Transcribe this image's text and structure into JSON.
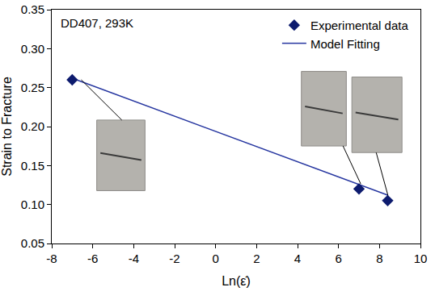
{
  "chart_data": {
    "type": "scatter",
    "annotations": [
      "DD407, 293K"
    ],
    "x_label": "Ln(ε̇)",
    "y_label": "Strain to Fracture",
    "series": [
      {
        "name": "Experimental data",
        "type": "scatter",
        "marker": "diamond",
        "color": "#0d1b6e",
        "x": [
          -7,
          7,
          8.4
        ],
        "values": [
          0.26,
          0.12,
          0.105
        ]
      },
      {
        "name": "Model Fitting",
        "type": "line",
        "line_style": "solid",
        "color": "#2636a0",
        "x": [
          -7,
          8.4
        ],
        "values": [
          0.262,
          0.112
        ]
      }
    ],
    "xlim": [
      -8,
      10
    ],
    "xticks": [
      -8,
      -6,
      -4,
      -2,
      0,
      2,
      4,
      6,
      8,
      10
    ],
    "ylim": [
      0.05,
      0.35
    ],
    "yticks": [
      0.05,
      {
        "value": 0.1,
        "label": "0.10"
      },
      0.15,
      {
        "value": 0.2,
        "label": "0.20"
      },
      0.25,
      {
        "value": 0.3,
        "label": "0.30"
      },
      0.35
    ],
    "grid": false,
    "legend": "upper right"
  }
}
